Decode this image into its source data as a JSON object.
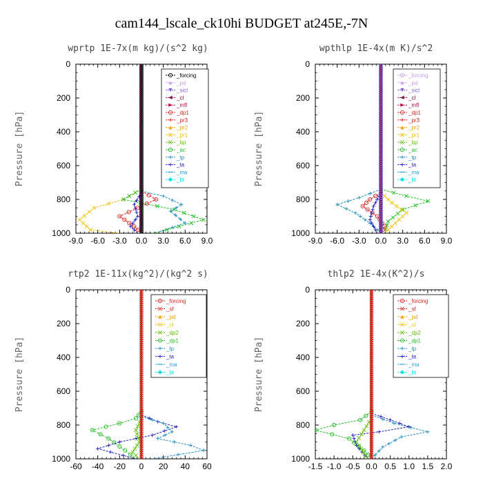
{
  "figure_title": "cam144_lscale_ck10hi  BUDGET at245E,-7N",
  "chart_data": [
    {
      "type": "line",
      "title": "wprtp  1E-7x(m kg)/(s^2 kg)",
      "ylabel": "Pressure [hPa]",
      "xlim": [
        -9,
        9
      ],
      "ylim": [
        1000,
        0
      ],
      "xticks": [
        "-9.0",
        "-6.0",
        "-3.0",
        "0.0",
        "3.0",
        "6.0",
        "9.0"
      ],
      "xtick_values": [
        -9,
        -6,
        -3,
        0,
        3,
        6,
        9
      ],
      "yticks": [
        "0",
        "200",
        "400",
        "600",
        "800",
        "1000"
      ],
      "ytick_values": [
        0,
        200,
        400,
        600,
        800,
        1000
      ],
      "series": [
        {
          "name": "_forcing",
          "color": "#000000",
          "marker": "o",
          "values": []
        },
        {
          "name": "_pd",
          "color": "#c8a0e0",
          "marker": "^",
          "values": []
        },
        {
          "name": "_sicl",
          "color": "#8060d0",
          "marker": "v",
          "values": []
        },
        {
          "name": "_cl",
          "color": "#800040",
          "marker": "<",
          "values": []
        },
        {
          "name": "_mfl",
          "color": "#c00040",
          "marker": ">",
          "values": []
        },
        {
          "name": "_dp1",
          "color": "#e02020",
          "marker": "o",
          "values": []
        },
        {
          "name": "_pr3",
          "color": "#e02020",
          "marker": "+",
          "values": []
        },
        {
          "name": "_pr2",
          "color": "#f0a000",
          "marker": "^",
          "values": []
        },
        {
          "name": "_pr1",
          "color": "#f0c000",
          "marker": "x",
          "values": []
        },
        {
          "name": "_bp",
          "color": "#60c000",
          "marker": "x",
          "values": []
        },
        {
          "name": "_ac",
          "color": "#20c020",
          "marker": "o",
          "values": []
        },
        {
          "name": "_tp",
          "color": "#2090c0",
          "marker": "+",
          "values": []
        },
        {
          "name": "_ta",
          "color": "#2020c0",
          "marker": "+",
          "values": []
        },
        {
          "name": "_ma",
          "color": "#20a0e0",
          "marker": "-",
          "values": []
        },
        {
          "name": "_bt",
          "color": "#00e0e0",
          "marker": "d",
          "values": []
        }
      ],
      "profiles": [
        {
          "color": "#f0c000",
          "marker": "x",
          "points": [
            [
              0,
              740
            ],
            [
              -2.5,
              800
            ],
            [
              -6.5,
              850
            ],
            [
              -8.5,
              920
            ],
            [
              -7.0,
              980
            ],
            [
              -3.0,
              1000
            ]
          ]
        },
        {
          "color": "#e02020",
          "marker": "o",
          "points": [
            [
              0,
              750
            ],
            [
              2.0,
              800
            ],
            [
              -0.5,
              850
            ],
            [
              -3.0,
              900
            ],
            [
              -1.0,
              960
            ],
            [
              0,
              1000
            ]
          ]
        },
        {
          "color": "#20c020",
          "marker": "x",
          "points": [
            [
              0,
              740
            ],
            [
              -2.5,
              800
            ],
            [
              4.5,
              860
            ],
            [
              8.5,
              920
            ],
            [
              3.5,
              980
            ],
            [
              1.5,
              1000
            ]
          ]
        },
        {
          "color": "#2090c0",
          "marker": "+",
          "points": [
            [
              0,
              750
            ],
            [
              3.0,
              780
            ],
            [
              5.5,
              830
            ],
            [
              4.0,
              870
            ],
            [
              6.0,
              940
            ],
            [
              2.5,
              990
            ]
          ]
        },
        {
          "color": "#2020c0",
          "marker": "+",
          "points": [
            [
              0,
              760
            ],
            [
              -1.0,
              830
            ],
            [
              -0.5,
              900
            ],
            [
              -1.5,
              960
            ],
            [
              -0.5,
              1000
            ]
          ]
        }
      ]
    },
    {
      "type": "line",
      "title": "wpthlp  1E-4x(m K)/s^2",
      "ylabel": "Pressure [hPa]",
      "xlim": [
        -9,
        9
      ],
      "ylim": [
        1000,
        0
      ],
      "xticks": [
        "-9.0",
        "-6.0",
        "-3.0",
        "0.0",
        "3.0",
        "6.0",
        "9.0"
      ],
      "xtick_values": [
        -9,
        -6,
        -3,
        0,
        3,
        6,
        9
      ],
      "yticks": [
        "0",
        "200",
        "400",
        "600",
        "800",
        "1000"
      ],
      "ytick_values": [
        0,
        200,
        400,
        600,
        800,
        1000
      ],
      "series": [
        {
          "name": "_forcing",
          "color": "#c8a0e0",
          "marker": "o",
          "values": []
        },
        {
          "name": "_pd",
          "color": "#c8a0e0",
          "marker": "^",
          "values": []
        },
        {
          "name": "_sicl",
          "color": "#8060d0",
          "marker": "v",
          "values": []
        },
        {
          "name": "_cl",
          "color": "#800040",
          "marker": "<",
          "values": []
        },
        {
          "name": "_mfl",
          "color": "#c00040",
          "marker": ">",
          "values": []
        },
        {
          "name": "_dp1",
          "color": "#e02020",
          "marker": "o",
          "values": []
        },
        {
          "name": "_pr3",
          "color": "#e02020",
          "marker": "+",
          "values": []
        },
        {
          "name": "_pr2",
          "color": "#f0a000",
          "marker": "^",
          "values": []
        },
        {
          "name": "_pr1",
          "color": "#f0c000",
          "marker": "x",
          "values": []
        },
        {
          "name": "_bp",
          "color": "#60c000",
          "marker": "x",
          "values": []
        },
        {
          "name": "_ac",
          "color": "#20c020",
          "marker": "o",
          "values": []
        },
        {
          "name": "_tp",
          "color": "#2090c0",
          "marker": "+",
          "values": []
        },
        {
          "name": "_ta",
          "color": "#2020c0",
          "marker": "+",
          "values": []
        },
        {
          "name": "_ma",
          "color": "#20a0e0",
          "marker": "-",
          "values": []
        },
        {
          "name": "_bt",
          "color": "#00e0e0",
          "marker": "d",
          "values": []
        }
      ],
      "profiles": [
        {
          "color": "#2090c0",
          "marker": "+",
          "points": [
            [
              0,
              740
            ],
            [
              -3.0,
              790
            ],
            [
              -6.0,
              830
            ],
            [
              -3.5,
              880
            ],
            [
              -1.5,
              940
            ],
            [
              0,
              1000
            ]
          ]
        },
        {
          "color": "#20c020",
          "marker": "x",
          "points": [
            [
              0,
              740
            ],
            [
              3.5,
              780
            ],
            [
              6.5,
              810
            ],
            [
              3.0,
              860
            ],
            [
              1.0,
              930
            ],
            [
              0.5,
              1000
            ]
          ]
        },
        {
          "color": "#e02020",
          "marker": "o",
          "points": [
            [
              0,
              760
            ],
            [
              -1.5,
              800
            ],
            [
              -2.5,
              840
            ],
            [
              -0.5,
              900
            ],
            [
              0.5,
              960
            ],
            [
              0,
              1000
            ]
          ]
        },
        {
          "color": "#f0c000",
          "marker": "x",
          "points": [
            [
              0,
              760
            ],
            [
              1.5,
              820
            ],
            [
              3.5,
              880
            ],
            [
              2.0,
              940
            ],
            [
              0.5,
              1000
            ]
          ]
        },
        {
          "color": "#2020c0",
          "marker": "+",
          "points": [
            [
              0,
              760
            ],
            [
              -1.0,
              840
            ],
            [
              -1.5,
              920
            ],
            [
              -0.5,
              1000
            ]
          ]
        }
      ]
    },
    {
      "type": "line",
      "title": "rtp2  1E-11x(kg^2)/(kg^2 s)",
      "ylabel": "Pressure [hPa]",
      "xlim": [
        -60,
        60
      ],
      "ylim": [
        1000,
        0
      ],
      "xticks": [
        "-60",
        "-40",
        "-20",
        "0",
        "20",
        "40",
        "60"
      ],
      "xtick_values": [
        -60,
        -40,
        -20,
        0,
        20,
        40,
        60
      ],
      "yticks": [
        "0",
        "200",
        "400",
        "600",
        "800",
        "1000"
      ],
      "ytick_values": [
        0,
        200,
        400,
        600,
        800,
        1000
      ],
      "series": [
        {
          "name": "_forcing",
          "color": "#e02020",
          "marker": "o",
          "values": []
        },
        {
          "name": "_sf",
          "color": "#e02020",
          "marker": "x",
          "values": []
        },
        {
          "name": "_pd",
          "color": "#f0a000",
          "marker": "^",
          "values": []
        },
        {
          "name": "_cl",
          "color": "#f0c000",
          "marker": "x",
          "values": []
        },
        {
          "name": "_dp2",
          "color": "#60c000",
          "marker": "x",
          "values": []
        },
        {
          "name": "_dp1",
          "color": "#20c020",
          "marker": "o",
          "values": []
        },
        {
          "name": "_tp",
          "color": "#2090c0",
          "marker": "+",
          "values": []
        },
        {
          "name": "_ta",
          "color": "#2020c0",
          "marker": "+",
          "values": []
        },
        {
          "name": "_ma",
          "color": "#20a0e0",
          "marker": "-",
          "values": []
        },
        {
          "name": "_bt",
          "color": "#00e0e0",
          "marker": "d",
          "values": []
        }
      ],
      "profiles": [
        {
          "color": "#20c020",
          "marker": "o",
          "points": [
            [
              0,
              720
            ],
            [
              -5,
              760
            ],
            [
              -20,
              790
            ],
            [
              -45,
              830
            ],
            [
              -30,
              880
            ],
            [
              -15,
              950
            ],
            [
              -5,
              1000
            ]
          ]
        },
        {
          "color": "#2020c0",
          "marker": "+",
          "points": [
            [
              0,
              740
            ],
            [
              15,
              780
            ],
            [
              32,
              810
            ],
            [
              10,
              860
            ],
            [
              -20,
              900
            ],
            [
              -40,
              940
            ],
            [
              -5,
              1000
            ]
          ]
        },
        {
          "color": "#2090c0",
          "marker": "+",
          "points": [
            [
              0,
              750
            ],
            [
              20,
              790
            ],
            [
              28,
              840
            ],
            [
              15,
              880
            ],
            [
              45,
              920
            ],
            [
              57,
              950
            ],
            [
              10,
              1000
            ]
          ]
        },
        {
          "color": "#60c000",
          "marker": "x",
          "points": [
            [
              0,
              760
            ],
            [
              -5,
              830
            ],
            [
              -2,
              900
            ],
            [
              -8,
              960
            ],
            [
              -2,
              1000
            ]
          ]
        }
      ]
    },
    {
      "type": "line",
      "title": "thlp2  1E-4x(K^2)/s",
      "ylabel": "Pressure [hPa]",
      "xlim": [
        -1.5,
        2.0
      ],
      "ylim": [
        1000,
        0
      ],
      "xticks": [
        "-1.5",
        "-1.0",
        "-0.5",
        "0.0",
        "0.5",
        "1.0",
        "1.5",
        "2.0"
      ],
      "xtick_values": [
        -1.5,
        -1.0,
        -0.5,
        0,
        0.5,
        1.0,
        1.5,
        2.0
      ],
      "yticks": [
        "0",
        "200",
        "400",
        "600",
        "800",
        "1000"
      ],
      "ytick_values": [
        0,
        200,
        400,
        600,
        800,
        1000
      ],
      "series": [
        {
          "name": "_forcing",
          "color": "#e02020",
          "marker": "o",
          "values": []
        },
        {
          "name": "_sf",
          "color": "#e02020",
          "marker": "x",
          "values": []
        },
        {
          "name": "_pd",
          "color": "#f0a000",
          "marker": "^",
          "values": []
        },
        {
          "name": "_cl",
          "color": "#f0c000",
          "marker": "x",
          "values": []
        },
        {
          "name": "_dp2",
          "color": "#60c000",
          "marker": "x",
          "values": []
        },
        {
          "name": "_dp1",
          "color": "#20c020",
          "marker": "o",
          "values": []
        },
        {
          "name": "_tp",
          "color": "#2090c0",
          "marker": "+",
          "values": []
        },
        {
          "name": "_ta",
          "color": "#2020c0",
          "marker": "+",
          "values": []
        },
        {
          "name": "_ma",
          "color": "#20a0e0",
          "marker": "-",
          "values": []
        },
        {
          "name": "_bt",
          "color": "#00e0e0",
          "marker": "d",
          "values": []
        }
      ],
      "profiles": [
        {
          "color": "#20c020",
          "marker": "o",
          "points": [
            [
              0,
              720
            ],
            [
              -0.3,
              770
            ],
            [
              -1.0,
              800
            ],
            [
              -1.5,
              830
            ],
            [
              -0.6,
              880
            ],
            [
              -0.2,
              950
            ],
            [
              0,
              1000
            ]
          ]
        },
        {
          "color": "#2090c0",
          "marker": "+",
          "points": [
            [
              0,
              740
            ],
            [
              0.6,
              790
            ],
            [
              1.5,
              840
            ],
            [
              0.8,
              870
            ],
            [
              0.3,
              930
            ],
            [
              0,
              1000
            ]
          ]
        },
        {
          "color": "#2020c0",
          "marker": "+",
          "points": [
            [
              0,
              730
            ],
            [
              0.5,
              770
            ],
            [
              1.0,
              810
            ],
            [
              0.2,
              840
            ],
            [
              -0.5,
              860
            ],
            [
              -0.4,
              920
            ],
            [
              -0.1,
              1000
            ]
          ]
        },
        {
          "color": "#60c000",
          "marker": "x",
          "points": [
            [
              0,
              760
            ],
            [
              -0.2,
              830
            ],
            [
              -0.4,
              900
            ],
            [
              -0.1,
              1000
            ]
          ]
        }
      ]
    }
  ]
}
